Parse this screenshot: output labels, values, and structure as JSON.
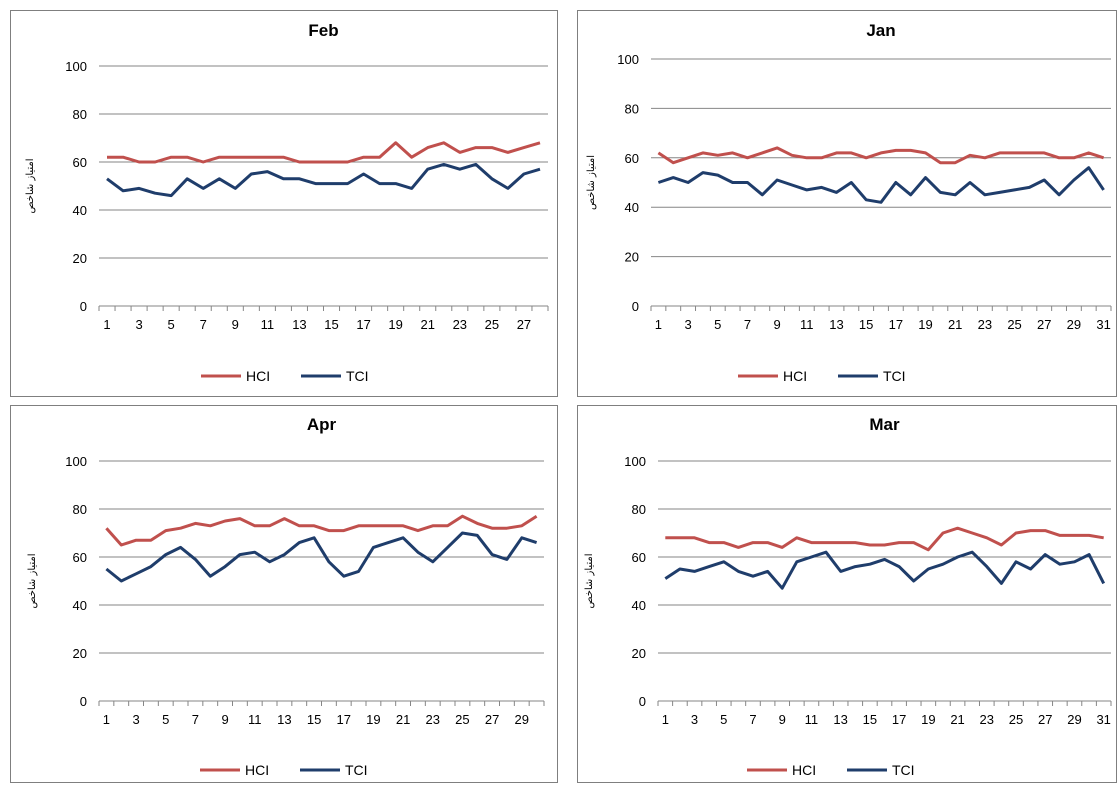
{
  "colors": {
    "HCI": "#C0504D",
    "TCI": "#1F3D6B",
    "grid": "#868686"
  },
  "chart_data": [
    {
      "type": "line",
      "title": "Feb",
      "ylabel": "امتیاز شاخص",
      "ylim": [
        0,
        100
      ],
      "yticks": [
        0,
        20,
        40,
        60,
        80,
        100
      ],
      "x": [
        1,
        2,
        3,
        4,
        5,
        6,
        7,
        8,
        9,
        10,
        11,
        12,
        13,
        14,
        15,
        16,
        17,
        18,
        19,
        20,
        21,
        22,
        23,
        24,
        25,
        26,
        27,
        28
      ],
      "xtick_labels": [
        "1",
        "3",
        "5",
        "7",
        "9",
        "11",
        "13",
        "15",
        "17",
        "19",
        "21",
        "23",
        "25",
        "27"
      ],
      "grid": true,
      "legend": "bottom",
      "series": [
        {
          "name": "HCI",
          "values": [
            62,
            62,
            60,
            60,
            62,
            62,
            60,
            62,
            62,
            62,
            62,
            62,
            60,
            60,
            60,
            60,
            62,
            62,
            68,
            62,
            66,
            68,
            64,
            66,
            66,
            64,
            66,
            68
          ]
        },
        {
          "name": "TCI",
          "values": [
            53,
            48,
            49,
            47,
            46,
            53,
            49,
            53,
            49,
            55,
            56,
            53,
            53,
            51,
            51,
            51,
            55,
            51,
            51,
            49,
            57,
            59,
            57,
            59,
            53,
            49,
            55,
            57
          ]
        }
      ]
    },
    {
      "type": "line",
      "title": "Jan",
      "ylabel": "امتیاز شاخص",
      "ylim": [
        0,
        100
      ],
      "yticks": [
        0,
        20,
        40,
        60,
        80,
        100
      ],
      "x": [
        1,
        2,
        3,
        4,
        5,
        6,
        7,
        8,
        9,
        10,
        11,
        12,
        13,
        14,
        15,
        16,
        17,
        18,
        19,
        20,
        21,
        22,
        23,
        24,
        25,
        26,
        27,
        28,
        29,
        30,
        31
      ],
      "xtick_labels": [
        "1",
        "3",
        "5",
        "7",
        "9",
        "11",
        "13",
        "15",
        "17",
        "19",
        "21",
        "23",
        "25",
        "27",
        "29",
        "31"
      ],
      "grid": true,
      "legend": "bottom",
      "series": [
        {
          "name": "HCI",
          "values": [
            62,
            58,
            60,
            62,
            61,
            62,
            60,
            62,
            64,
            61,
            60,
            60,
            62,
            62,
            60,
            62,
            63,
            63,
            62,
            58,
            58,
            61,
            60,
            62,
            62,
            62,
            62,
            60,
            60,
            62,
            60
          ]
        },
        {
          "name": "TCI",
          "values": [
            50,
            52,
            50,
            54,
            53,
            50,
            50,
            45,
            51,
            49,
            47,
            48,
            46,
            50,
            43,
            42,
            50,
            45,
            52,
            46,
            45,
            50,
            45,
            46,
            47,
            48,
            51,
            45,
            51,
            56,
            47
          ]
        }
      ]
    },
    {
      "type": "line",
      "title": "Apr",
      "ylabel": "امتیاز شاخص",
      "ylim": [
        0,
        100
      ],
      "yticks": [
        0,
        20,
        40,
        60,
        80,
        100
      ],
      "x": [
        1,
        2,
        3,
        4,
        5,
        6,
        7,
        8,
        9,
        10,
        11,
        12,
        13,
        14,
        15,
        16,
        17,
        18,
        19,
        20,
        21,
        22,
        23,
        24,
        25,
        26,
        27,
        28,
        29,
        30
      ],
      "xtick_labels": [
        "1",
        "3",
        "5",
        "7",
        "9",
        "11",
        "13",
        "15",
        "17",
        "19",
        "21",
        "23",
        "25",
        "27",
        "29"
      ],
      "grid": true,
      "legend": "bottom",
      "series": [
        {
          "name": "HCI",
          "values": [
            72,
            65,
            67,
            67,
            71,
            72,
            74,
            73,
            75,
            76,
            73,
            73,
            76,
            73,
            73,
            71,
            71,
            73,
            73,
            73,
            73,
            71,
            73,
            73,
            77,
            74,
            72,
            72,
            73,
            77
          ]
        },
        {
          "name": "TCI",
          "values": [
            55,
            50,
            53,
            56,
            61,
            64,
            59,
            52,
            56,
            61,
            62,
            58,
            61,
            66,
            68,
            58,
            52,
            54,
            64,
            66,
            68,
            62,
            58,
            64,
            70,
            69,
            61,
            59,
            68,
            66
          ]
        }
      ]
    },
    {
      "type": "line",
      "title": "Mar",
      "ylabel": "امتیاز شاخص",
      "ylim": [
        0,
        100
      ],
      "yticks": [
        0,
        20,
        40,
        60,
        80,
        100
      ],
      "x": [
        1,
        2,
        3,
        4,
        5,
        6,
        7,
        8,
        9,
        10,
        11,
        12,
        13,
        14,
        15,
        16,
        17,
        18,
        19,
        20,
        21,
        22,
        23,
        24,
        25,
        26,
        27,
        28,
        29,
        30,
        31
      ],
      "xtick_labels": [
        "1",
        "3",
        "5",
        "7",
        "9",
        "11",
        "13",
        "15",
        "17",
        "19",
        "21",
        "23",
        "25",
        "27",
        "29",
        "31"
      ],
      "grid": true,
      "legend": "bottom",
      "series": [
        {
          "name": "HCI",
          "values": [
            68,
            68,
            68,
            66,
            66,
            64,
            66,
            66,
            64,
            68,
            66,
            66,
            66,
            66,
            65,
            65,
            66,
            66,
            63,
            70,
            72,
            70,
            68,
            65,
            70,
            71,
            71,
            69,
            69,
            69,
            68
          ]
        },
        {
          "name": "TCI",
          "values": [
            51,
            55,
            54,
            56,
            58,
            54,
            52,
            54,
            47,
            58,
            60,
            62,
            54,
            56,
            57,
            59,
            56,
            50,
            55,
            57,
            60,
            62,
            56,
            49,
            58,
            55,
            61,
            57,
            58,
            61,
            49
          ]
        }
      ]
    }
  ]
}
